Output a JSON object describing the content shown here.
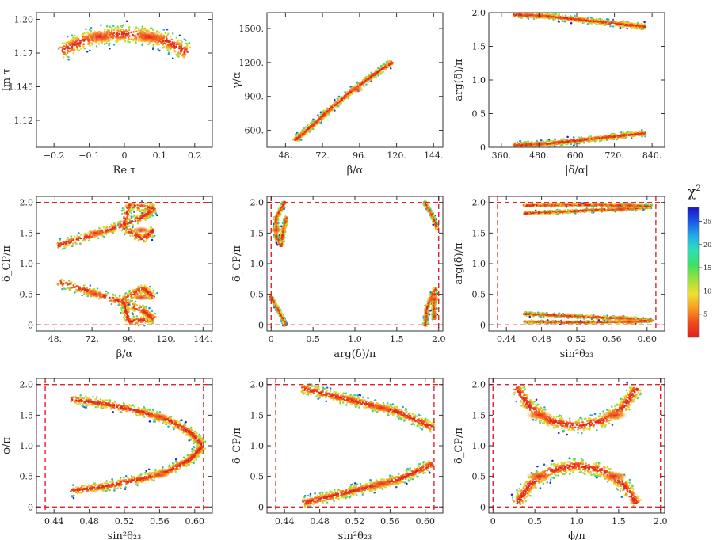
{
  "figure": "Marginal scatter distributions colored by chi-squared",
  "colorbar": {
    "label_main": "χ",
    "label_sup": "2",
    "ticks": [
      "25",
      "20",
      "15",
      "10",
      "5"
    ],
    "range": [
      0,
      28
    ],
    "gradient_stops": [
      "#1a16c8",
      "#1e58e8",
      "#22aee8",
      "#2ee0b4",
      "#3ee060",
      "#9ee03a",
      "#f0e030",
      "#f89a22",
      "#f04a1c",
      "#e0201a"
    ]
  },
  "reference_lines": {
    "color": "#e4202a",
    "style": "dashed"
  },
  "chart_data": [
    {
      "type": "scatter",
      "panel": "row1-col1",
      "xlabel": "Re τ",
      "ylabel": "Im τ",
      "xlim": [
        -0.25,
        0.25
      ],
      "ylim": [
        1.1,
        1.2
      ],
      "xticks": [
        -0.2,
        -0.1,
        0,
        0.1,
        0.2
      ],
      "xticklabels": [
        "−0.2",
        "−0.1",
        "0",
        "0.1",
        "0.2"
      ],
      "yticks": [
        1.12,
        1.145,
        1.17,
        1.195
      ],
      "yticklabels": [
        "1.12",
        "1.145",
        "1.17",
        "1.20"
      ],
      "bands": [
        {
          "name": "arc",
          "spine": [
            [
              -0.18,
              1.171
            ],
            [
              -0.12,
              1.179
            ],
            [
              -0.06,
              1.183
            ],
            [
              0.0,
              1.184
            ],
            [
              0.06,
              1.183
            ],
            [
              0.12,
              1.179
            ],
            [
              0.18,
              1.17
            ]
          ],
          "halfwidth": 0.0075,
          "cores": [
            [
              -0.07,
              1.182
            ],
            [
              0.07,
              1.182
            ]
          ]
        }
      ]
    },
    {
      "type": "scatter",
      "panel": "row1-col2",
      "xlabel": "β/α",
      "ylabel": "γ/α",
      "xlim": [
        36,
        150
      ],
      "ylim": [
        450,
        1640
      ],
      "xticks": [
        48,
        72,
        96,
        120,
        144
      ],
      "xticklabels": [
        "48.",
        "72.",
        "96.",
        "120.",
        "144."
      ],
      "yticks": [
        600,
        900,
        1200,
        1500
      ],
      "yticklabels": [
        "600.",
        "900.",
        "1200.",
        "1500."
      ],
      "bands": [
        {
          "name": "diagonal",
          "spine": [
            [
              54,
              510
            ],
            [
              66,
              650
            ],
            [
              78,
              800
            ],
            [
              92,
              960
            ],
            [
              104,
              1080
            ],
            [
              117,
              1200
            ]
          ],
          "halfwidth": 32,
          "cores": [
            [
              94,
              960
            ]
          ]
        }
      ]
    },
    {
      "type": "scatter",
      "panel": "row1-col3",
      "xlabel": "|δ/α|",
      "ylabel": "arg(δ)/π",
      "xlim": [
        320,
        880
      ],
      "ylim": [
        0,
        2.0
      ],
      "xticks": [
        360,
        480,
        600,
        720,
        840
      ],
      "xticklabels": [
        "360.",
        "480.",
        "600.",
        "720.",
        "840."
      ],
      "yticks": [
        0,
        0.5,
        1.0,
        1.5,
        2.0
      ],
      "yticklabels": [
        "0",
        "0.5",
        "1.0",
        "1.5",
        "2.0"
      ],
      "bands": [
        {
          "name": "upper",
          "spine": [
            [
              400,
              1.97
            ],
            [
              500,
              1.95
            ],
            [
              620,
              1.89
            ],
            [
              740,
              1.83
            ],
            [
              820,
              1.79
            ]
          ],
          "halfwidth": 0.05,
          "cores": [
            [
              480,
              1.95
            ]
          ]
        },
        {
          "name": "lower",
          "spine": [
            [
              400,
              0.03
            ],
            [
              500,
              0.05
            ],
            [
              620,
              0.11
            ],
            [
              740,
              0.17
            ],
            [
              820,
              0.21
            ]
          ],
          "halfwidth": 0.05,
          "cores": [
            [
              480,
              0.05
            ]
          ]
        }
      ]
    },
    {
      "type": "scatter",
      "panel": "row2-col1",
      "xlabel": "β/α",
      "ylabel": "δ_CP/π",
      "xlim": [
        36,
        150
      ],
      "ylim": [
        -0.1,
        2.1
      ],
      "xticks": [
        48,
        72,
        96,
        120,
        144
      ],
      "xticklabels": [
        "48.",
        "72.",
        "96.",
        "120.",
        "144."
      ],
      "yticks": [
        0,
        0.5,
        1.0,
        1.5,
        2.0
      ],
      "yticklabels": [
        "0",
        "0.5",
        "1.0",
        "1.5",
        "2.0"
      ],
      "hlines": [
        0,
        2.0
      ],
      "bands": [
        {
          "name": "upper-loop",
          "spine": [
            [
              50,
              1.3
            ],
            [
              70,
              1.45
            ],
            [
              88,
              1.6
            ],
            [
              104,
              1.75
            ],
            [
              112,
              1.9
            ],
            [
              96,
              1.95
            ],
            [
              92,
              1.6
            ],
            [
              105,
              1.4
            ],
            [
              112,
              1.55
            ]
          ],
          "halfwidth": 0.09,
          "cores": [
            [
              74,
              1.5
            ],
            [
              104,
              1.55
            ]
          ]
        },
        {
          "name": "lower-loop",
          "spine": [
            [
              50,
              0.7
            ],
            [
              70,
              0.55
            ],
            [
              88,
              0.4
            ],
            [
              104,
              0.25
            ],
            [
              112,
              0.1
            ],
            [
              96,
              0.05
            ],
            [
              92,
              0.4
            ],
            [
              105,
              0.6
            ],
            [
              112,
              0.45
            ]
          ],
          "halfwidth": 0.09,
          "cores": [
            [
              74,
              0.5
            ],
            [
              104,
              0.45
            ]
          ]
        }
      ]
    },
    {
      "type": "scatter",
      "panel": "row2-col2",
      "xlabel": "arg(δ)/π",
      "ylabel": "δ_CP/π",
      "xlim": [
        -0.05,
        2.05
      ],
      "ylim": [
        -0.1,
        2.1
      ],
      "xticks": [
        0,
        0.5,
        1.0,
        1.5,
        2.0
      ],
      "xticklabels": [
        "0",
        "0.5",
        "1.0",
        "1.5",
        "2.0"
      ],
      "yticks": [
        0,
        0.5,
        1.0,
        1.5,
        2.0
      ],
      "yticklabels": [
        "0",
        "0.5",
        "1.0",
        "1.5",
        "2.0"
      ],
      "hlines": [
        0,
        2.0
      ],
      "vlines": [
        0,
        2.0
      ],
      "bands": [
        {
          "name": "upper-left",
          "spine": [
            [
              0.16,
              2.0
            ],
            [
              0.06,
              1.75
            ],
            [
              0.06,
              1.45
            ],
            [
              0.12,
              1.3
            ],
            [
              0.14,
              1.5
            ],
            [
              0.18,
              1.75
            ]
          ],
          "halfwidth": 0.04,
          "cores": [
            [
              0.06,
              1.55
            ]
          ]
        },
        {
          "name": "lower-left",
          "spine": [
            [
              0.0,
              0.45
            ],
            [
              0.07,
              0.28
            ],
            [
              0.14,
              0.1
            ],
            [
              0.17,
              0.0
            ]
          ],
          "halfwidth": 0.03,
          "cores": []
        },
        {
          "name": "upper-right",
          "spine": [
            [
              1.83,
              2.0
            ],
            [
              1.92,
              1.8
            ],
            [
              1.98,
              1.57
            ]
          ],
          "halfwidth": 0.03,
          "cores": []
        },
        {
          "name": "lower-right",
          "spine": [
            [
              1.84,
              0.0
            ],
            [
              1.86,
              0.28
            ],
            [
              1.96,
              0.6
            ],
            [
              1.94,
              0.3
            ],
            [
              1.95,
              0.1
            ]
          ],
          "halfwidth": 0.04,
          "cores": [
            [
              1.94,
              0.42
            ]
          ]
        }
      ]
    },
    {
      "type": "scatter",
      "panel": "row2-col3",
      "xlabel": "sin²θ₂₃",
      "ylabel": "arg(δ)/π",
      "xlim": [
        0.42,
        0.62
      ],
      "ylim": [
        -0.1,
        2.1
      ],
      "xticks": [
        0.44,
        0.48,
        0.52,
        0.56,
        0.6
      ],
      "xticklabels": [
        "0.44",
        "0.48",
        "0.52",
        "0.56",
        "0.60"
      ],
      "yticks": [
        0,
        0.5,
        1.0,
        1.5,
        2.0
      ],
      "yticklabels": [
        "0",
        "0.5",
        "1.0",
        "1.5",
        "2.0"
      ],
      "hlines": [
        0,
        2.0
      ],
      "vlines": [
        0.43,
        0.61
      ],
      "bands": [
        {
          "name": "upper-a",
          "spine": [
            [
              0.46,
              1.82
            ],
            [
              0.52,
              1.86
            ],
            [
              0.58,
              1.9
            ],
            [
              0.605,
              1.93
            ]
          ],
          "halfwidth": 0.035,
          "cores": [
            [
              0.57,
              1.89
            ]
          ]
        },
        {
          "name": "upper-b",
          "spine": [
            [
              0.46,
              1.95
            ],
            [
              0.52,
              1.96
            ],
            [
              0.58,
              1.95
            ],
            [
              0.605,
              1.93
            ]
          ],
          "halfwidth": 0.025,
          "cores": [
            [
              0.58,
              1.95
            ]
          ]
        },
        {
          "name": "lower-a",
          "spine": [
            [
              0.46,
              0.18
            ],
            [
              0.52,
              0.14
            ],
            [
              0.58,
              0.1
            ],
            [
              0.605,
              0.07
            ]
          ],
          "halfwidth": 0.035,
          "cores": [
            [
              0.57,
              0.11
            ]
          ]
        },
        {
          "name": "lower-b",
          "spine": [
            [
              0.46,
              0.05
            ],
            [
              0.52,
              0.04
            ],
            [
              0.58,
              0.05
            ],
            [
              0.605,
              0.07
            ]
          ],
          "halfwidth": 0.025,
          "cores": [
            [
              0.58,
              0.05
            ]
          ]
        }
      ]
    },
    {
      "type": "scatter",
      "panel": "row3-col1",
      "xlabel": "sin²θ₂₃",
      "ylabel": "ϕ/π",
      "xlim": [
        0.42,
        0.62
      ],
      "ylim": [
        -0.1,
        2.1
      ],
      "xticks": [
        0.44,
        0.48,
        0.52,
        0.56,
        0.6
      ],
      "xticklabels": [
        "0.44",
        "0.48",
        "0.52",
        "0.56",
        "0.60"
      ],
      "yticks": [
        0,
        0.5,
        1.0,
        1.5,
        2.0
      ],
      "yticklabels": [
        "0",
        "0.5",
        "1.0",
        "1.5",
        "2.0"
      ],
      "hlines": [
        0,
        2.0
      ],
      "vlines": [
        0.43,
        0.61
      ],
      "bands": [
        {
          "name": "upper-arm",
          "spine": [
            [
              0.46,
              1.76
            ],
            [
              0.5,
              1.68
            ],
            [
              0.54,
              1.55
            ],
            [
              0.57,
              1.42
            ],
            [
              0.595,
              1.22
            ],
            [
              0.608,
              1.02
            ]
          ],
          "halfwidth": 0.09,
          "cores": [
            [
              0.56,
              1.48
            ]
          ]
        },
        {
          "name": "lower-arm",
          "spine": [
            [
              0.46,
              0.26
            ],
            [
              0.5,
              0.34
            ],
            [
              0.54,
              0.46
            ],
            [
              0.57,
              0.58
            ],
            [
              0.595,
              0.78
            ],
            [
              0.608,
              0.98
            ]
          ],
          "halfwidth": 0.09,
          "cores": [
            [
              0.56,
              0.52
            ]
          ]
        }
      ]
    },
    {
      "type": "scatter",
      "panel": "row3-col2",
      "xlabel": "sin²θ₂₃",
      "ylabel": "δ_CP/π",
      "xlim": [
        0.42,
        0.62
      ],
      "ylim": [
        -0.1,
        2.1
      ],
      "xticks": [
        0.44,
        0.48,
        0.52,
        0.56,
        0.6
      ],
      "xticklabels": [
        "0.44",
        "0.48",
        "0.52",
        "0.56",
        "0.60"
      ],
      "yticks": [
        0,
        0.5,
        1.0,
        1.5,
        2.0
      ],
      "yticklabels": [
        "0",
        "0.5",
        "1.0",
        "1.5",
        "2.0"
      ],
      "hlines": [
        0,
        2.0
      ],
      "vlines": [
        0.43,
        0.61
      ],
      "bands": [
        {
          "name": "upper",
          "spine": [
            [
              0.46,
              1.94
            ],
            [
              0.5,
              1.8
            ],
            [
              0.54,
              1.66
            ],
            [
              0.57,
              1.55
            ],
            [
              0.608,
              1.3
            ]
          ],
          "halfwidth": 0.1,
          "cores": [
            [
              0.55,
              1.62
            ]
          ]
        },
        {
          "name": "lower",
          "spine": [
            [
              0.46,
              0.06
            ],
            [
              0.5,
              0.2
            ],
            [
              0.54,
              0.34
            ],
            [
              0.57,
              0.45
            ],
            [
              0.608,
              0.7
            ]
          ],
          "halfwidth": 0.1,
          "cores": [
            [
              0.55,
              0.38
            ]
          ]
        }
      ]
    },
    {
      "type": "scatter",
      "panel": "row3-col3",
      "xlabel": "ϕ/π",
      "ylabel": "δ_CP/π",
      "xlim": [
        -0.05,
        2.05
      ],
      "ylim": [
        -0.1,
        2.1
      ],
      "xticks": [
        0,
        0.5,
        1.0,
        1.5,
        2.0
      ],
      "xticklabels": [
        "0",
        "0.5",
        "1.0",
        "1.5",
        "2.0"
      ],
      "yticks": [
        0,
        0.5,
        1.0,
        1.5,
        2.0
      ],
      "yticklabels": [
        "0",
        "0.5",
        "1.0",
        "1.5",
        "2.0"
      ],
      "hlines": [
        0,
        2.0
      ],
      "vlines": [
        0,
        2.0
      ],
      "bands": [
        {
          "name": "upper-arc",
          "spine": [
            [
              0.28,
              1.95
            ],
            [
              0.45,
              1.62
            ],
            [
              0.7,
              1.4
            ],
            [
              1.0,
              1.32
            ],
            [
              1.3,
              1.4
            ],
            [
              1.55,
              1.62
            ],
            [
              1.72,
              1.95
            ]
          ],
          "halfwidth": 0.13,
          "cores": [
            [
              0.55,
              1.5
            ],
            [
              1.45,
              1.5
            ]
          ]
        },
        {
          "name": "lower-arc",
          "spine": [
            [
              0.28,
              0.05
            ],
            [
              0.45,
              0.38
            ],
            [
              0.7,
              0.6
            ],
            [
              1.0,
              0.68
            ],
            [
              1.3,
              0.6
            ],
            [
              1.55,
              0.38
            ],
            [
              1.72,
              0.05
            ]
          ],
          "halfwidth": 0.13,
          "cores": [
            [
              0.55,
              0.5
            ],
            [
              1.45,
              0.5
            ]
          ]
        }
      ]
    }
  ]
}
